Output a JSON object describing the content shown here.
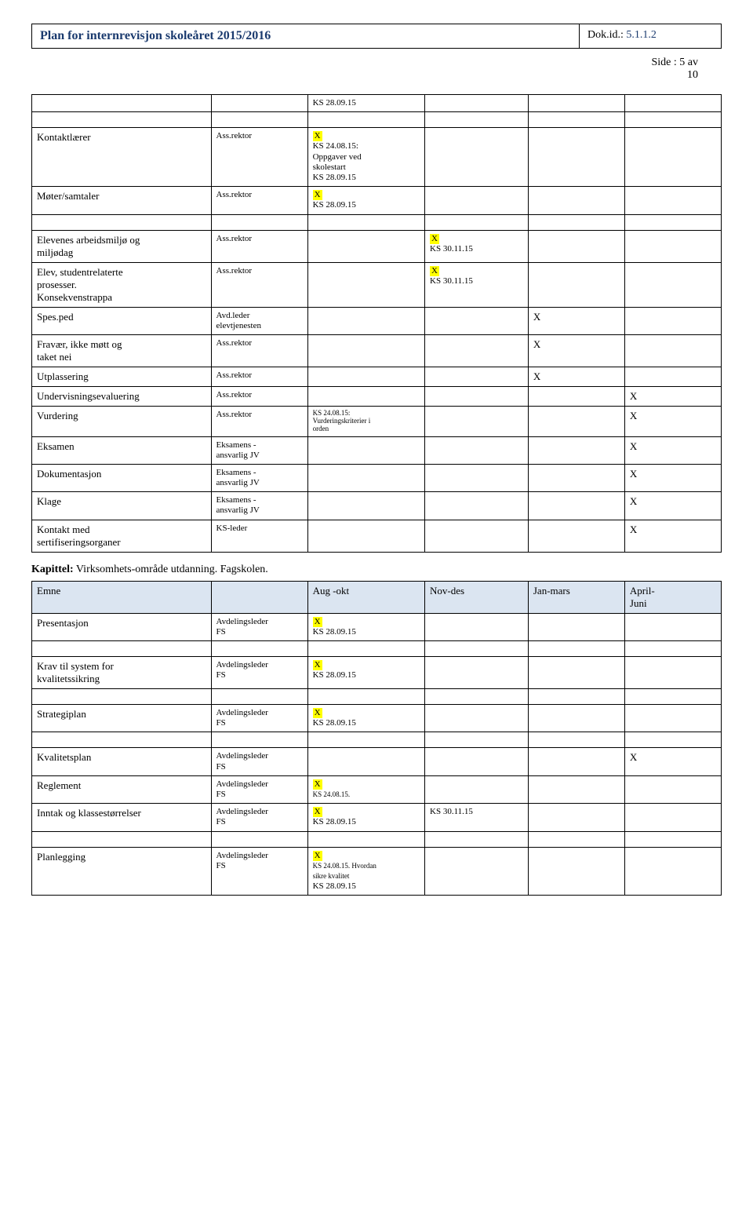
{
  "header": {
    "title": "Plan for internrevisjon skoleåret 2015/2016",
    "dok_label": "Dok.id.: ",
    "dok_val": "5.1.1.2"
  },
  "page_num": {
    "line1": "Side   : 5 av",
    "line2": "10"
  },
  "ks28": "KS 28.09.15",
  "ks30": "KS 30.11.15",
  "ks2408": "KS 24.08.15:",
  "oppgaver1": "Oppgaver ved",
  "oppgaver2": "skolestart",
  "ks2408_small": "KS 24.08.15:",
  "vurd1": "Vurderingskriterier i",
  "vurd2": "orden",
  "ks2408_full": "KS  24.08.15.",
  "ks2408_hvordan": "KS  24.08.15. Hvordan",
  "sikre": "sikre kvalitet",
  "X": "X",
  "roles": {
    "ass_rektor": "Ass.rektor",
    "avd_leder": "Avd.leder",
    "elevtj": "elevtjenesten",
    "eksamens": "Eksamens -",
    "ansvarlig": "ansvarlig JV",
    "ks_leder": "KS-leder",
    "avdelingsleder": "Avdelingsleder",
    "fs": "FS"
  },
  "t1": {
    "rows": {
      "kontaktlaerer": "Kontaktlærer",
      "moter": "Møter/samtaler",
      "elevenes1": "Elevenes arbeidsmiljø og",
      "elevenes2": "miljødag",
      "elev1": "Elev, studentrelaterte",
      "elev2": "prosesser.",
      "elev3": "Konsekvenstrappa",
      "spes": "Spes.ped",
      "fravaer1": "Fravær, ikke møtt og",
      "fravaer2": "taket nei",
      "utplass": "Utplassering",
      "underv": "Undervisningsevaluering",
      "vurdering": "Vurdering",
      "eksamen": "Eksamen",
      "dokumentasjon": "Dokumentasjon",
      "klage": "Klage",
      "kontakt1": "Kontakt med",
      "kontakt2": "sertifiseringsorganer"
    }
  },
  "kap": {
    "label": "Kapittel:",
    "text": " Virksomhets-område utdanning. Fagskolen."
  },
  "t2": {
    "headers": {
      "emne": "Emne",
      "aug": "Aug -okt",
      "nov": "Nov-des",
      "jan": "Jan-mars",
      "apr1": "April-",
      "apr2": "Juni"
    },
    "rows": {
      "presentasjon": "Presentasjon",
      "krav1": "Krav til system for",
      "krav2": "kvalitetssikring",
      "strategiplan": "Strategiplan",
      "kvalitetsplan": "Kvalitetsplan",
      "reglement": "Reglement",
      "inntak": "Inntak og klassestørrelser",
      "planlegging": "Planlegging"
    }
  }
}
